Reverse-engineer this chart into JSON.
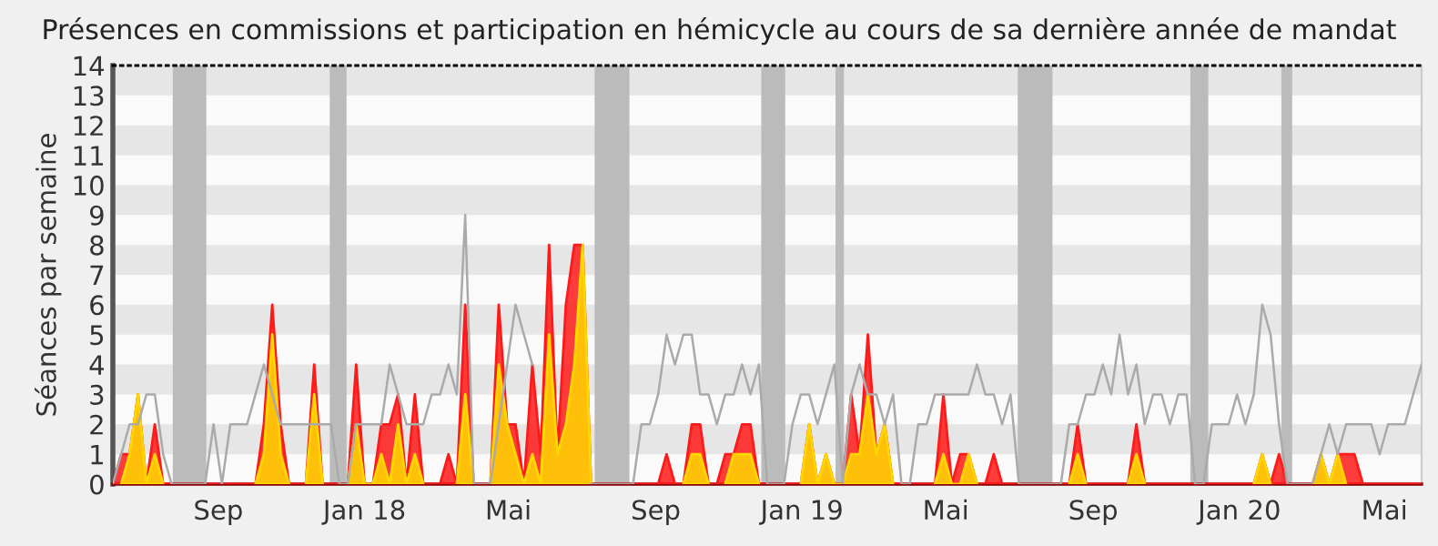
{
  "chart_data": {
    "type": "area",
    "title": "Présences en commissions et participation en hémicycle au cours de sa dernière année de mandat",
    "ylabel": "Séances par semaine",
    "x": [
      "2017-06-05",
      "2017-06-12",
      "2017-06-19",
      "2017-06-26",
      "2017-07-03",
      "2017-07-10",
      "2017-07-17",
      "2017-07-24",
      "2017-07-31",
      "2017-08-07",
      "2017-08-14",
      "2017-08-21",
      "2017-08-28",
      "2017-09-04",
      "2017-09-11",
      "2017-09-18",
      "2017-09-25",
      "2017-10-02",
      "2017-10-09",
      "2017-10-16",
      "2017-10-23",
      "2017-10-30",
      "2017-11-06",
      "2017-11-13",
      "2017-11-20",
      "2017-11-27",
      "2017-12-04",
      "2017-12-11",
      "2017-12-18",
      "2017-12-25",
      "2018-01-01",
      "2018-01-08",
      "2018-01-15",
      "2018-01-22",
      "2018-01-29",
      "2018-02-05",
      "2018-02-12",
      "2018-02-19",
      "2018-02-26",
      "2018-03-05",
      "2018-03-12",
      "2018-03-19",
      "2018-03-26",
      "2018-04-02",
      "2018-04-09",
      "2018-04-16",
      "2018-04-23",
      "2018-04-30",
      "2018-05-07",
      "2018-05-14",
      "2018-05-21",
      "2018-05-28",
      "2018-06-04",
      "2018-06-11",
      "2018-06-18",
      "2018-06-25",
      "2018-07-02",
      "2018-07-09",
      "2018-07-16",
      "2018-07-23",
      "2018-07-30",
      "2018-08-06",
      "2018-08-13",
      "2018-08-20",
      "2018-08-27",
      "2018-09-03",
      "2018-09-10",
      "2018-09-17",
      "2018-09-24",
      "2018-10-01",
      "2018-10-08",
      "2018-10-15",
      "2018-10-22",
      "2018-10-29",
      "2018-11-05",
      "2018-11-12",
      "2018-11-19",
      "2018-11-26",
      "2018-12-03",
      "2018-12-10",
      "2018-12-17",
      "2018-12-24",
      "2018-12-31",
      "2019-01-07",
      "2019-01-14",
      "2019-01-21",
      "2019-01-28",
      "2019-02-04",
      "2019-02-11",
      "2019-02-18",
      "2019-02-25",
      "2019-03-04",
      "2019-03-11",
      "2019-03-18",
      "2019-03-25",
      "2019-04-01",
      "2019-04-08",
      "2019-04-15",
      "2019-04-22",
      "2019-04-29",
      "2019-05-06",
      "2019-05-13",
      "2019-05-20",
      "2019-05-27",
      "2019-06-03",
      "2019-06-10",
      "2019-06-17",
      "2019-06-24",
      "2019-07-01",
      "2019-07-08",
      "2019-07-15",
      "2019-07-22",
      "2019-07-29",
      "2019-08-05",
      "2019-08-12",
      "2019-08-19",
      "2019-08-26",
      "2019-09-02",
      "2019-09-09",
      "2019-09-16",
      "2019-09-23",
      "2019-09-30",
      "2019-10-07",
      "2019-10-14",
      "2019-10-21",
      "2019-10-28",
      "2019-11-04",
      "2019-11-11",
      "2019-11-18",
      "2019-11-25",
      "2019-12-02",
      "2019-12-09",
      "2019-12-16",
      "2019-12-23",
      "2019-12-30",
      "2020-01-06",
      "2020-01-13",
      "2020-01-20",
      "2020-01-27",
      "2020-02-03",
      "2020-02-10",
      "2020-02-17",
      "2020-02-24",
      "2020-03-02",
      "2020-03-09",
      "2020-03-16",
      "2020-03-23",
      "2020-03-30",
      "2020-04-06",
      "2020-04-13",
      "2020-04-20",
      "2020-04-27",
      "2020-05-04",
      "2020-05-11",
      "2020-05-18",
      "2020-05-25",
      "2020-06-01"
    ],
    "series": [
      {
        "color": "#ff1a1a",
        "values": [
          0,
          1,
          1,
          3,
          0,
          2,
          0,
          0,
          0,
          0,
          0,
          0,
          0,
          0,
          0,
          0,
          0,
          0,
          2,
          6,
          2,
          0,
          0,
          0,
          4,
          0,
          0,
          0,
          0,
          4,
          0,
          0,
          2,
          2,
          3,
          0,
          3,
          0,
          0,
          0,
          1,
          0,
          6,
          0,
          0,
          0,
          6,
          2,
          2,
          0,
          4,
          1,
          8,
          1,
          6,
          8,
          8,
          0,
          0,
          0,
          0,
          0,
          0,
          0,
          0,
          0,
          1,
          0,
          0,
          2,
          2,
          0,
          0,
          1,
          1,
          2,
          2,
          0,
          0,
          0,
          0,
          0,
          0,
          2,
          0,
          1,
          0,
          0,
          3,
          1,
          5,
          1,
          2,
          0,
          0,
          0,
          0,
          0,
          0,
          3,
          0,
          1,
          1,
          0,
          0,
          1,
          0,
          0,
          0,
          0,
          0,
          0,
          0,
          0,
          0,
          2,
          0,
          0,
          0,
          0,
          0,
          0,
          2,
          0,
          0,
          0,
          0,
          0,
          0,
          0,
          0,
          0,
          0,
          0,
          0,
          0,
          0,
          1,
          0,
          1,
          0,
          0,
          0,
          0,
          1,
          0,
          1,
          1,
          1,
          0,
          0,
          0,
          0,
          0,
          0,
          0,
          0
        ]
      },
      {
        "color": "#ffd700",
        "values": [
          null,
          0,
          1,
          3,
          0,
          1,
          0,
          null,
          null,
          null,
          null,
          null,
          null,
          null,
          null,
          null,
          null,
          0,
          1,
          5,
          1,
          0,
          null,
          0,
          3,
          0,
          null,
          null,
          0,
          2,
          0,
          0,
          1,
          0,
          2,
          0,
          1,
          0,
          null,
          null,
          null,
          0,
          3,
          0,
          null,
          0,
          4,
          2,
          1,
          0,
          1,
          0,
          5,
          1,
          2,
          4,
          8,
          0,
          null,
          null,
          null,
          null,
          null,
          null,
          null,
          null,
          null,
          null,
          0,
          1,
          1,
          0,
          null,
          0,
          1,
          1,
          1,
          0,
          null,
          null,
          null,
          null,
          0,
          2,
          0,
          1,
          0,
          0,
          1,
          1,
          3,
          1,
          2,
          0,
          null,
          null,
          null,
          null,
          0,
          1,
          0,
          0,
          1,
          0,
          null,
          null,
          null,
          null,
          null,
          null,
          null,
          null,
          null,
          null,
          0,
          1,
          0,
          null,
          null,
          null,
          null,
          0,
          1,
          0,
          null,
          null,
          null,
          null,
          null,
          null,
          null,
          null,
          null,
          null,
          null,
          null,
          0,
          1,
          0,
          null,
          null,
          null,
          null,
          0,
          1,
          0,
          1,
          0,
          null,
          null,
          null,
          null,
          null,
          null,
          null,
          null,
          null
        ]
      },
      {
        "type": "line",
        "color": "#aaaaaa",
        "values": [
          0,
          1,
          2,
          2,
          3,
          3,
          1,
          0,
          0,
          0,
          0,
          0,
          2,
          0,
          2,
          2,
          2,
          3,
          4,
          3,
          2,
          2,
          2,
          2,
          2,
          2,
          2,
          0,
          0,
          2,
          2,
          2,
          2,
          4,
          3,
          2,
          2,
          2,
          3,
          3,
          4,
          3,
          9,
          0,
          0,
          0,
          2,
          4,
          6,
          5,
          4,
          null,
          null,
          null,
          null,
          null,
          null,
          0,
          0,
          0,
          0,
          0,
          0,
          2,
          2,
          3,
          5,
          4,
          5,
          5,
          3,
          3,
          2,
          3,
          3,
          4,
          3,
          4,
          0,
          0,
          0,
          2,
          3,
          3,
          2,
          3,
          4,
          0,
          3,
          4,
          3,
          3,
          2,
          3,
          0,
          0,
          2,
          2,
          3,
          3,
          3,
          3,
          3,
          4,
          3,
          3,
          2,
          3,
          0,
          0,
          0,
          0,
          0,
          0,
          2,
          2,
          3,
          3,
          4,
          3,
          5,
          3,
          4,
          2,
          3,
          3,
          2,
          3,
          3,
          0,
          0,
          2,
          2,
          2,
          3,
          2,
          3,
          6,
          5,
          2,
          0,
          0,
          0,
          0,
          1,
          2,
          1,
          2,
          2,
          2,
          2,
          1,
          2,
          2,
          2,
          3,
          4
        ]
      }
    ],
    "xlim": [
      "2017-06-05",
      "2020-06-01"
    ],
    "xticks": [
      {
        "value": "2017-09-01",
        "label": "Sep"
      },
      {
        "value": "2018-01-01",
        "label": "Jan 18"
      },
      {
        "value": "2018-05-01",
        "label": "Mai"
      },
      {
        "value": "2018-09-01",
        "label": "Sep"
      },
      {
        "value": "2019-01-01",
        "label": "Jan 19"
      },
      {
        "value": "2019-05-01",
        "label": "Mai"
      },
      {
        "value": "2019-09-01",
        "label": "Sep"
      },
      {
        "value": "2020-01-01",
        "label": "Jan 20"
      },
      {
        "value": "2020-05-01",
        "label": "Mai"
      }
    ],
    "ylim": [
      0,
      14
    ],
    "yticks": [
      0,
      1,
      2,
      3,
      4,
      5,
      6,
      7,
      8,
      9,
      10,
      11,
      12,
      13,
      14
    ],
    "bands": [
      {
        "axis": "y",
        "from": 1,
        "to": 2,
        "color": "#e6e6e6"
      },
      {
        "axis": "y",
        "from": 3,
        "to": 4,
        "color": "#e6e6e6"
      },
      {
        "axis": "y",
        "from": 5,
        "to": 6,
        "color": "#e6e6e6"
      },
      {
        "axis": "y",
        "from": 7,
        "to": 8,
        "color": "#e6e6e6"
      },
      {
        "axis": "y",
        "from": 9,
        "to": 10,
        "color": "#e6e6e6"
      },
      {
        "axis": "y",
        "from": 11,
        "to": 12,
        "color": "#e6e6e6"
      },
      {
        "axis": "y",
        "from": 13,
        "to": 14,
        "color": "#e6e6e6"
      },
      {
        "axis": "x",
        "from": "2017-07-25",
        "to": "2017-08-22",
        "color": "#bbbbbb"
      },
      {
        "axis": "x",
        "from": "2017-12-03",
        "to": "2017-12-17",
        "color": "#bbbbbb"
      },
      {
        "axis": "x",
        "from": "2018-07-12",
        "to": "2018-08-10",
        "color": "#bbbbbb"
      },
      {
        "axis": "x",
        "from": "2018-11-28",
        "to": "2018-12-18",
        "color": "#bbbbbb"
      },
      {
        "axis": "x",
        "from": "2019-01-29",
        "to": "2019-02-05",
        "color": "#bbbbbb"
      },
      {
        "axis": "x",
        "from": "2019-06-30",
        "to": "2019-07-29",
        "color": "#bbbbbb"
      },
      {
        "axis": "x",
        "from": "2019-11-21",
        "to": "2019-12-06",
        "color": "#bbbbbb"
      },
      {
        "axis": "x",
        "from": "2020-02-05",
        "to": "2020-02-14",
        "color": "#bbbbbb"
      }
    ]
  }
}
